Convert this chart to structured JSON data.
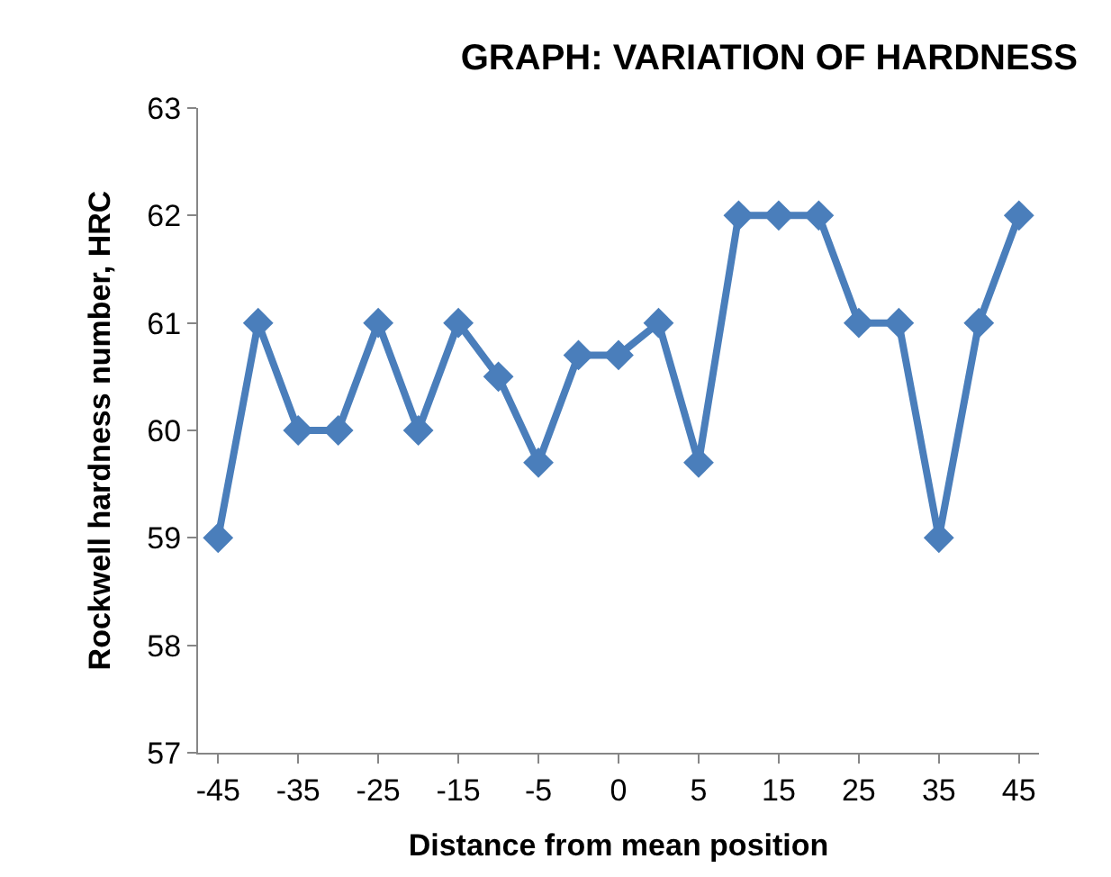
{
  "chart_data": {
    "type": "line",
    "title": "GRAPH: VARIATION OF HARDNESS",
    "xlabel": "Distance from mean position",
    "ylabel": "Rockwell hardness number, HRC",
    "categories": [
      "-45",
      null,
      "-35",
      null,
      "-25",
      null,
      "-15",
      null,
      "-5",
      null,
      "0",
      null,
      "5",
      null,
      "15",
      null,
      "25",
      null,
      "35",
      null,
      "45"
    ],
    "series": [
      {
        "color": "#4a7ebb",
        "values": [
          59,
          61,
          60,
          60,
          61,
          60,
          61,
          60.5,
          59.7,
          60.7,
          60.7,
          61,
          59.7,
          62,
          62,
          62,
          61,
          61,
          59,
          61,
          62
        ]
      }
    ],
    "ylim": [
      57,
      63
    ],
    "yticks": [
      57,
      58,
      59,
      60,
      61,
      62,
      63
    ],
    "grid": false,
    "marker": "diamond",
    "line_style": "solid"
  }
}
